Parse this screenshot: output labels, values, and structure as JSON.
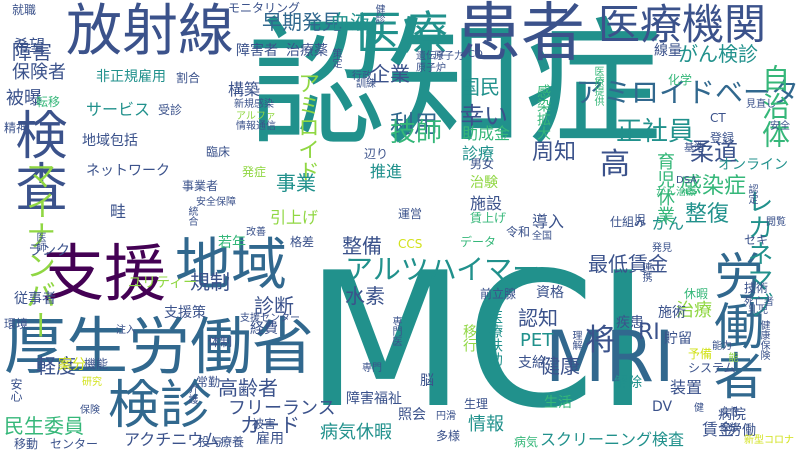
{
  "palette": {
    "purple": "#440154",
    "indigo": "#3b528b",
    "blue": "#31688e",
    "teal": "#21918c",
    "green": "#35b779",
    "lime": "#90d743",
    "yellow": "#d2e21b"
  },
  "words": [
    {
      "text": "認知症",
      "color": "teal"
    },
    {
      "text": "MCI",
      "color": "teal"
    },
    {
      "text": "厚生労働省",
      "color": "blue"
    },
    {
      "text": "支援",
      "color": "purple"
    },
    {
      "text": "地域",
      "color": "blue"
    },
    {
      "text": "放射線",
      "color": "indigo"
    },
    {
      "text": "患者",
      "color": "indigo"
    },
    {
      "text": "医療",
      "color": "teal"
    },
    {
      "text": "医療機関",
      "color": "indigo"
    },
    {
      "text": "検査",
      "color": "indigo"
    },
    {
      "text": "検診",
      "color": "blue"
    },
    {
      "text": "労働者",
      "color": "blue"
    },
    {
      "text": "MRI",
      "color": "blue"
    },
    {
      "text": "アルツハイマー",
      "color": "teal"
    },
    {
      "text": "アミロイドベータ",
      "color": "blue"
    },
    {
      "text": "マイナンバー",
      "color": "lime"
    },
    {
      "text": "レカネマブ",
      "color": "teal"
    },
    {
      "text": "自治体",
      "color": "green"
    },
    {
      "text": "早期発見",
      "color": "blue"
    },
    {
      "text": "血液",
      "color": "teal"
    },
    {
      "text": "がん検診",
      "color": "teal"
    },
    {
      "text": "企業",
      "color": "indigo"
    },
    {
      "text": "国民",
      "color": "teal"
    },
    {
      "text": "アミロイド",
      "color": "lime"
    },
    {
      "text": "利用",
      "color": "blue"
    },
    {
      "text": "幸い",
      "color": "indigo"
    },
    {
      "text": "技師",
      "color": "green"
    },
    {
      "text": "正社員",
      "color": "teal"
    },
    {
      "text": "柔道",
      "color": "indigo"
    },
    {
      "text": "感染症",
      "color": "green"
    },
    {
      "text": "整復",
      "color": "teal"
    },
    {
      "text": "周知",
      "color": "indigo"
    },
    {
      "text": "高",
      "color": "indigo"
    },
    {
      "text": "将",
      "color": "indigo"
    },
    {
      "text": "事業",
      "color": "teal"
    },
    {
      "text": "整備",
      "color": "indigo"
    },
    {
      "text": "最低賃金",
      "color": "indigo"
    },
    {
      "text": "規制",
      "color": "indigo"
    },
    {
      "text": "水素",
      "color": "indigo"
    },
    {
      "text": "診断",
      "color": "indigo"
    },
    {
      "text": "認知",
      "color": "indigo"
    },
    {
      "text": "健康",
      "color": "indigo"
    },
    {
      "text": "軽度",
      "color": "indigo"
    },
    {
      "text": "高齢者",
      "color": "indigo"
    },
    {
      "text": "フリーランス",
      "color": "indigo"
    },
    {
      "text": "カード",
      "color": "indigo"
    },
    {
      "text": "民生委員",
      "color": "green"
    },
    {
      "text": "障害福祉",
      "color": "indigo"
    },
    {
      "text": "病気休暇",
      "color": "teal"
    },
    {
      "text": "情報",
      "color": "teal"
    },
    {
      "text": "スクリーニング検査",
      "color": "teal"
    },
    {
      "text": "アクチニウム",
      "color": "indigo"
    },
    {
      "text": "障害",
      "color": "indigo"
    },
    {
      "text": "保険者",
      "color": "indigo"
    },
    {
      "text": "被曝",
      "color": "indigo"
    },
    {
      "text": "希望",
      "color": "indigo"
    },
    {
      "text": "非正規雇用",
      "color": "teal"
    },
    {
      "text": "サービス",
      "color": "teal"
    },
    {
      "text": "構築",
      "color": "indigo"
    },
    {
      "text": "地域包括",
      "color": "indigo"
    },
    {
      "text": "ネットワーク",
      "color": "indigo"
    },
    {
      "text": "ランク",
      "color": "indigo"
    },
    {
      "text": "従事者",
      "color": "indigo"
    },
    {
      "text": "経費",
      "color": "indigo"
    },
    {
      "text": "若年",
      "color": "green"
    },
    {
      "text": "畦",
      "color": "indigo"
    },
    {
      "text": "引上げ",
      "color": "lime"
    },
    {
      "text": "ユリティー",
      "color": "lime"
    },
    {
      "text": "支援策",
      "color": "indigo"
    },
    {
      "text": "治療",
      "color": "lime"
    },
    {
      "text": "貯留",
      "color": "indigo"
    },
    {
      "text": "装置",
      "color": "indigo"
    },
    {
      "text": "PET",
      "color": "teal"
    },
    {
      "text": "RI",
      "color": "indigo"
    },
    {
      "text": "治療薬",
      "color": "indigo"
    },
    {
      "text": "障害者",
      "color": "indigo"
    },
    {
      "text": "モニタリング",
      "color": "indigo"
    },
    {
      "text": "就職",
      "color": "indigo"
    },
    {
      "text": "線量",
      "color": "indigo"
    },
    {
      "text": "化学",
      "color": "green"
    },
    {
      "text": "助成金",
      "color": "green"
    },
    {
      "text": "診療",
      "color": "teal"
    },
    {
      "text": "推進",
      "color": "teal"
    },
    {
      "text": "施設",
      "color": "indigo"
    },
    {
      "text": "導入",
      "color": "indigo"
    },
    {
      "text": "がん",
      "color": "teal"
    },
    {
      "text": "仕組み",
      "color": "indigo"
    },
    {
      "text": "資格",
      "color": "indigo"
    },
    {
      "text": "疾患",
      "color": "indigo"
    },
    {
      "text": "施術",
      "color": "indigo"
    },
    {
      "text": "支給",
      "color": "indigo"
    },
    {
      "text": "生活",
      "color": "green"
    },
    {
      "text": "解除",
      "color": "teal"
    },
    {
      "text": "病院",
      "color": "indigo"
    },
    {
      "text": "賃金",
      "color": "indigo"
    },
    {
      "text": "労働",
      "color": "indigo"
    },
    {
      "text": "雇用",
      "color": "indigo"
    },
    {
      "text": "被害",
      "color": "indigo"
    },
    {
      "text": "療養",
      "color": "indigo"
    },
    {
      "text": "投与",
      "color": "indigo"
    },
    {
      "text": "センター",
      "color": "indigo"
    },
    {
      "text": "移動",
      "color": "indigo"
    },
    {
      "text": "精神",
      "color": "indigo"
    },
    {
      "text": "環境",
      "color": "indigo"
    },
    {
      "text": "案分",
      "color": "yellow"
    },
    {
      "text": "機能",
      "color": "indigo"
    },
    {
      "text": "安心",
      "color": "indigo"
    },
    {
      "text": "臨床",
      "color": "indigo"
    },
    {
      "text": "発症",
      "color": "lime"
    },
    {
      "text": "事業者",
      "color": "indigo"
    },
    {
      "text": "技術",
      "color": "indigo"
    },
    {
      "text": "休暇",
      "color": "green"
    },
    {
      "text": "オンライン",
      "color": "teal"
    },
    {
      "text": "セキ",
      "color": "indigo"
    },
    {
      "text": "登録",
      "color": "indigo"
    },
    {
      "text": "運営",
      "color": "indigo"
    },
    {
      "text": "令和",
      "color": "indigo"
    },
    {
      "text": "前立腺",
      "color": "indigo"
    },
    {
      "text": "データ",
      "color": "green"
    },
    {
      "text": "システム",
      "color": "indigo"
    },
    {
      "text": "予備",
      "color": "yellow"
    },
    {
      "text": "照会",
      "color": "indigo"
    },
    {
      "text": "格差",
      "color": "indigo"
    },
    {
      "text": "常勤",
      "color": "indigo"
    },
    {
      "text": "体制",
      "color": "indigo"
    },
    {
      "text": "受診",
      "color": "indigo"
    },
    {
      "text": "割合",
      "color": "indigo"
    },
    {
      "text": "転移",
      "color": "green"
    },
    {
      "text": "健診",
      "color": "indigo"
    },
    {
      "text": "閲覧",
      "color": "indigo"
    },
    {
      "text": "遺伝子",
      "color": "indigo"
    },
    {
      "text": "CCS",
      "color": "yellow"
    },
    {
      "text": "CO",
      "color": "indigo"
    },
    {
      "text": "CT",
      "color": "indigo"
    },
    {
      "text": "DSA",
      "color": "indigo"
    },
    {
      "text": "DV",
      "color": "indigo"
    },
    {
      "text": "健",
      "color": "indigo"
    },
    {
      "text": "基準",
      "color": "indigo"
    },
    {
      "text": "全国",
      "color": "indigo"
    },
    {
      "text": "研究",
      "color": "yellow"
    },
    {
      "text": "男女",
      "color": "indigo"
    },
    {
      "text": "多様",
      "color": "indigo"
    },
    {
      "text": "病気",
      "color": "green"
    },
    {
      "text": "新型コロナ",
      "color": "yellow"
    },
    {
      "text": "専門医",
      "color": "indigo"
    },
    {
      "text": "介護",
      "color": "indigo"
    },
    {
      "text": "原子力",
      "color": "indigo"
    },
    {
      "text": "賃上げ",
      "color": "green"
    },
    {
      "text": "辺り",
      "color": "indigo"
    },
    {
      "text": "治験",
      "color": "lime"
    },
    {
      "text": "原子炉",
      "color": "indigo"
    },
    {
      "text": "感染拡大",
      "color": "green"
    },
    {
      "text": "医療扶助",
      "color": "teal"
    },
    {
      "text": "移行",
      "color": "lime"
    },
    {
      "text": "専門",
      "color": "indigo"
    },
    {
      "text": "家族",
      "color": "indigo"
    },
    {
      "text": "安全",
      "color": "indigo"
    },
    {
      "text": "見直し",
      "color": "indigo"
    },
    {
      "text": "脳",
      "color": "indigo"
    },
    {
      "text": "乳児",
      "color": "indigo"
    },
    {
      "text": "保険",
      "color": "indigo"
    },
    {
      "text": "改善",
      "color": "indigo"
    },
    {
      "text": "情報通信",
      "color": "indigo"
    },
    {
      "text": "行政",
      "color": "indigo"
    },
    {
      "text": "医療提供",
      "color": "green"
    },
    {
      "text": "安全保障",
      "color": "indigo"
    },
    {
      "text": "訓練",
      "color": "indigo"
    },
    {
      "text": "死亡者",
      "color": "indigo"
    },
    {
      "text": "円滑",
      "color": "indigo"
    },
    {
      "text": "女性",
      "color": "indigo"
    },
    {
      "text": "生理",
      "color": "indigo"
    },
    {
      "text": "健康保険",
      "color": "indigo"
    },
    {
      "text": "能力",
      "color": "indigo"
    },
    {
      "text": "がん治療",
      "color": "green"
    },
    {
      "text": "能",
      "color": "lime"
    },
    {
      "text": "策定",
      "color": "indigo"
    },
    {
      "text": "認定",
      "color": "indigo"
    },
    {
      "text": "発見",
      "color": "indigo"
    },
    {
      "text": "注入",
      "color": "indigo"
    },
    {
      "text": "支援センター",
      "color": "indigo"
    },
    {
      "text": "医師",
      "color": "indigo"
    },
    {
      "text": "連携",
      "color": "indigo"
    },
    {
      "text": "新規感染",
      "color": "indigo"
    },
    {
      "text": "育児休業",
      "color": "green"
    },
    {
      "text": "児",
      "color": "indigo"
    },
    {
      "text": "理解",
      "color": "indigo"
    },
    {
      "text": "統合",
      "color": "indigo"
    },
    {
      "text": "アルファ",
      "color": "lime"
    }
  ]
}
